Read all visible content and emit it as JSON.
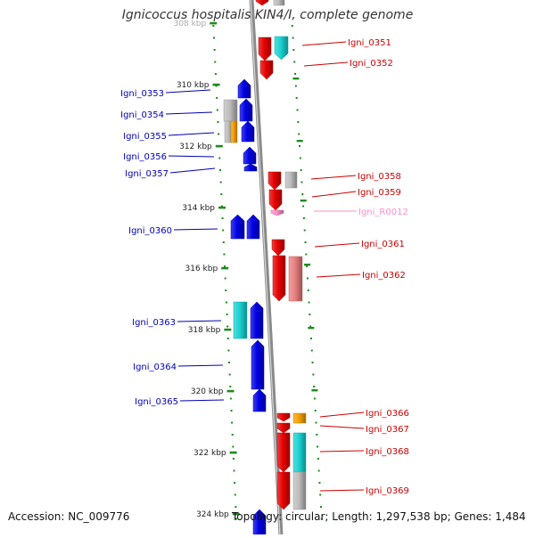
{
  "title": "Ignicoccus hospitalis KIN4/I, complete genome",
  "accession": "Accession: NC_009776",
  "summary": "Topology: circular; Length: 1,297,538 bp; Genes: 1,484",
  "colors": {
    "forward": "#e60000",
    "reverse": "#0000e6",
    "rna": "#ff8fc8",
    "grey": "#bdbdbd",
    "cyan": "#19d2d2",
    "orange": "#f5a000",
    "salmon": "#e98080",
    "backbone": "#8a8a8a",
    "ticks": "#1e8a1e",
    "forward_label": "#cc0000",
    "reverse_label": "#0000b4",
    "rna_label": "#ff8fc8"
  },
  "axis": {
    "tick_labels": [
      "308 kbp",
      "310 kbp",
      "312 kbp",
      "314 kbp",
      "316 kbp",
      "318 kbp",
      "320 kbp",
      "322 kbp",
      "324 kbp"
    ]
  },
  "labels": {
    "forward": [
      "Igni_0351",
      "Igni_0352",
      "Igni_0358",
      "Igni_0359",
      "Igni_0361",
      "Igni_0362",
      "Igni_0366",
      "Igni_0367",
      "Igni_0368",
      "Igni_0369"
    ],
    "rna": [
      "Igni_R0012"
    ],
    "reverse": [
      "Igni_0353",
      "Igni_0354",
      "Igni_0355",
      "Igni_0356",
      "Igni_0357",
      "Igni_0360",
      "Igni_0363",
      "Igni_0364",
      "Igni_0365"
    ]
  }
}
